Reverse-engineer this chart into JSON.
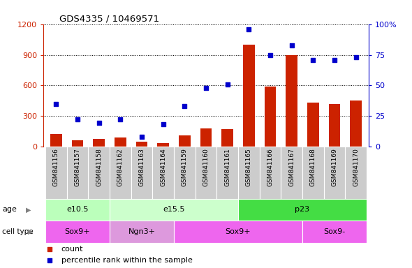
{
  "title": "GDS4335 / 10469571",
  "samples": [
    "GSM841156",
    "GSM841157",
    "GSM841158",
    "GSM841162",
    "GSM841163",
    "GSM841164",
    "GSM841159",
    "GSM841160",
    "GSM841161",
    "GSM841165",
    "GSM841166",
    "GSM841167",
    "GSM841168",
    "GSM841169",
    "GSM841170"
  ],
  "counts": [
    120,
    60,
    75,
    90,
    45,
    35,
    110,
    175,
    170,
    1000,
    590,
    900,
    430,
    420,
    450
  ],
  "percentile": [
    35,
    22,
    19,
    22,
    8,
    18,
    33,
    48,
    51,
    96,
    75,
    83,
    71,
    71,
    73
  ],
  "ylim_left": [
    0,
    1200
  ],
  "ylim_right": [
    0,
    100
  ],
  "yticks_left": [
    0,
    300,
    600,
    900,
    1200
  ],
  "yticks_right": [
    0,
    25,
    50,
    75,
    100
  ],
  "bar_color": "#cc2200",
  "dot_color": "#0000cc",
  "age_groups": [
    {
      "label": "e10.5",
      "start": 0,
      "end": 3,
      "color": "#bbffbb"
    },
    {
      "label": "e15.5",
      "start": 3,
      "end": 9,
      "color": "#ccffcc"
    },
    {
      "label": "p23",
      "start": 9,
      "end": 15,
      "color": "#44dd44"
    }
  ],
  "cell_groups": [
    {
      "label": "Sox9+",
      "start": 0,
      "end": 3,
      "color": "#ee66ee"
    },
    {
      "label": "Ngn3+",
      "start": 3,
      "end": 6,
      "color": "#dd99dd"
    },
    {
      "label": "Sox9+",
      "start": 6,
      "end": 12,
      "color": "#ee66ee"
    },
    {
      "label": "Sox9-",
      "start": 12,
      "end": 15,
      "color": "#ee66ee"
    }
  ],
  "legend_count_color": "#cc2200",
  "legend_dot_color": "#0000cc",
  "left_axis_color": "#cc2200",
  "right_axis_color": "#0000cc",
  "xlabels_bg": "#cccccc"
}
